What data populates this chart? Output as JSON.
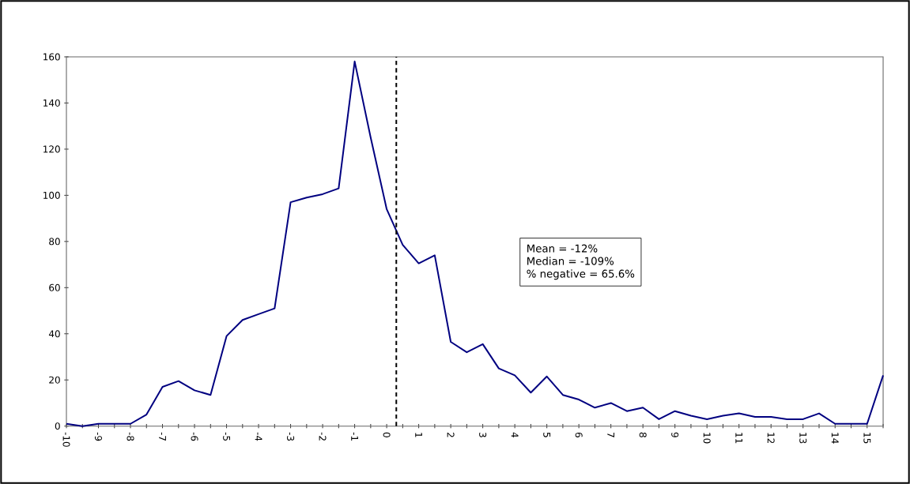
{
  "chart_data": {
    "type": "line",
    "x": [
      -10,
      -9.5,
      -9,
      -8.5,
      -8,
      -7.5,
      -7,
      -6.5,
      -6,
      -5.5,
      -5,
      -4.5,
      -4,
      -3.5,
      -3,
      -2.5,
      -2,
      -1.5,
      -1,
      -0.5,
      0,
      0.5,
      1,
      1.5,
      2,
      2.5,
      3,
      3.5,
      4,
      4.5,
      5,
      5.5,
      6,
      6.5,
      7,
      7.5,
      8,
      8.5,
      9,
      9.5,
      10,
      10.5,
      11,
      11.5,
      12,
      12.5,
      13,
      13.5,
      14,
      14.5,
      15,
      15.5
    ],
    "series": [
      {
        "color": "#000080",
        "values": [
          1,
          0,
          1,
          1,
          1,
          5,
          17,
          19.5,
          15.5,
          13.5,
          39,
          46,
          48.5,
          51,
          97,
          99,
          100.5,
          103,
          158,
          125,
          94,
          78.5,
          70.5,
          74,
          36.5,
          32,
          35.5,
          25,
          22,
          14.5,
          21.5,
          13.5,
          11.5,
          8,
          10,
          6.5,
          8,
          3,
          6.5,
          4.5,
          3,
          4.5,
          5.5,
          4,
          4,
          3,
          3,
          5.5,
          1,
          1,
          1,
          22
        ]
      }
    ],
    "xlim": [
      -10,
      15.5
    ],
    "ylim": [
      0,
      160
    ],
    "xticks": [
      -10,
      {
        "value": -9.5,
        "label": null
      },
      -9,
      {
        "value": -8.5,
        "label": null
      },
      -8,
      {
        "value": -7.5,
        "label": null
      },
      -7,
      {
        "value": -6.5,
        "label": null
      },
      -6,
      {
        "value": -5.5,
        "label": null
      },
      -5,
      {
        "value": -4.5,
        "label": null
      },
      -4,
      {
        "value": -3.5,
        "label": null
      },
      -3,
      {
        "value": -2.5,
        "label": null
      },
      -2,
      {
        "value": -1.5,
        "label": null
      },
      -1,
      {
        "value": -0.5,
        "label": null
      },
      0,
      {
        "value": 0.5,
        "label": null
      },
      1,
      {
        "value": 1.5,
        "label": null
      },
      2,
      {
        "value": 2.5,
        "label": null
      },
      3,
      {
        "value": 3.5,
        "label": null
      },
      4,
      {
        "value": 4.5,
        "label": null
      },
      5,
      {
        "value": 5.5,
        "label": null
      },
      6,
      {
        "value": 6.5,
        "label": null
      },
      7,
      {
        "value": 7.5,
        "label": null
      },
      8,
      {
        "value": 8.5,
        "label": null
      },
      9,
      {
        "value": 9.5,
        "label": null
      },
      10,
      {
        "value": 10.5,
        "label": null
      },
      11,
      {
        "value": 11.5,
        "label": null
      },
      12,
      {
        "value": 12.5,
        "label": null
      },
      13,
      {
        "value": 13.5,
        "label": null
      },
      14,
      {
        "value": 14.5,
        "label": null
      },
      15,
      {
        "value": 15.5,
        "label": null
      }
    ],
    "yticks": [
      0,
      20,
      40,
      60,
      80,
      100,
      120,
      140,
      160
    ],
    "ref_lines": [
      {
        "axis": "x",
        "value": 0.3,
        "color": "#000000",
        "line_style": "dashed"
      }
    ],
    "annotations": [
      "Mean = -12%",
      "Median = -109%",
      "% negative = 65.6%"
    ],
    "grid": false,
    "marker": "none",
    "line_style": "solid"
  }
}
